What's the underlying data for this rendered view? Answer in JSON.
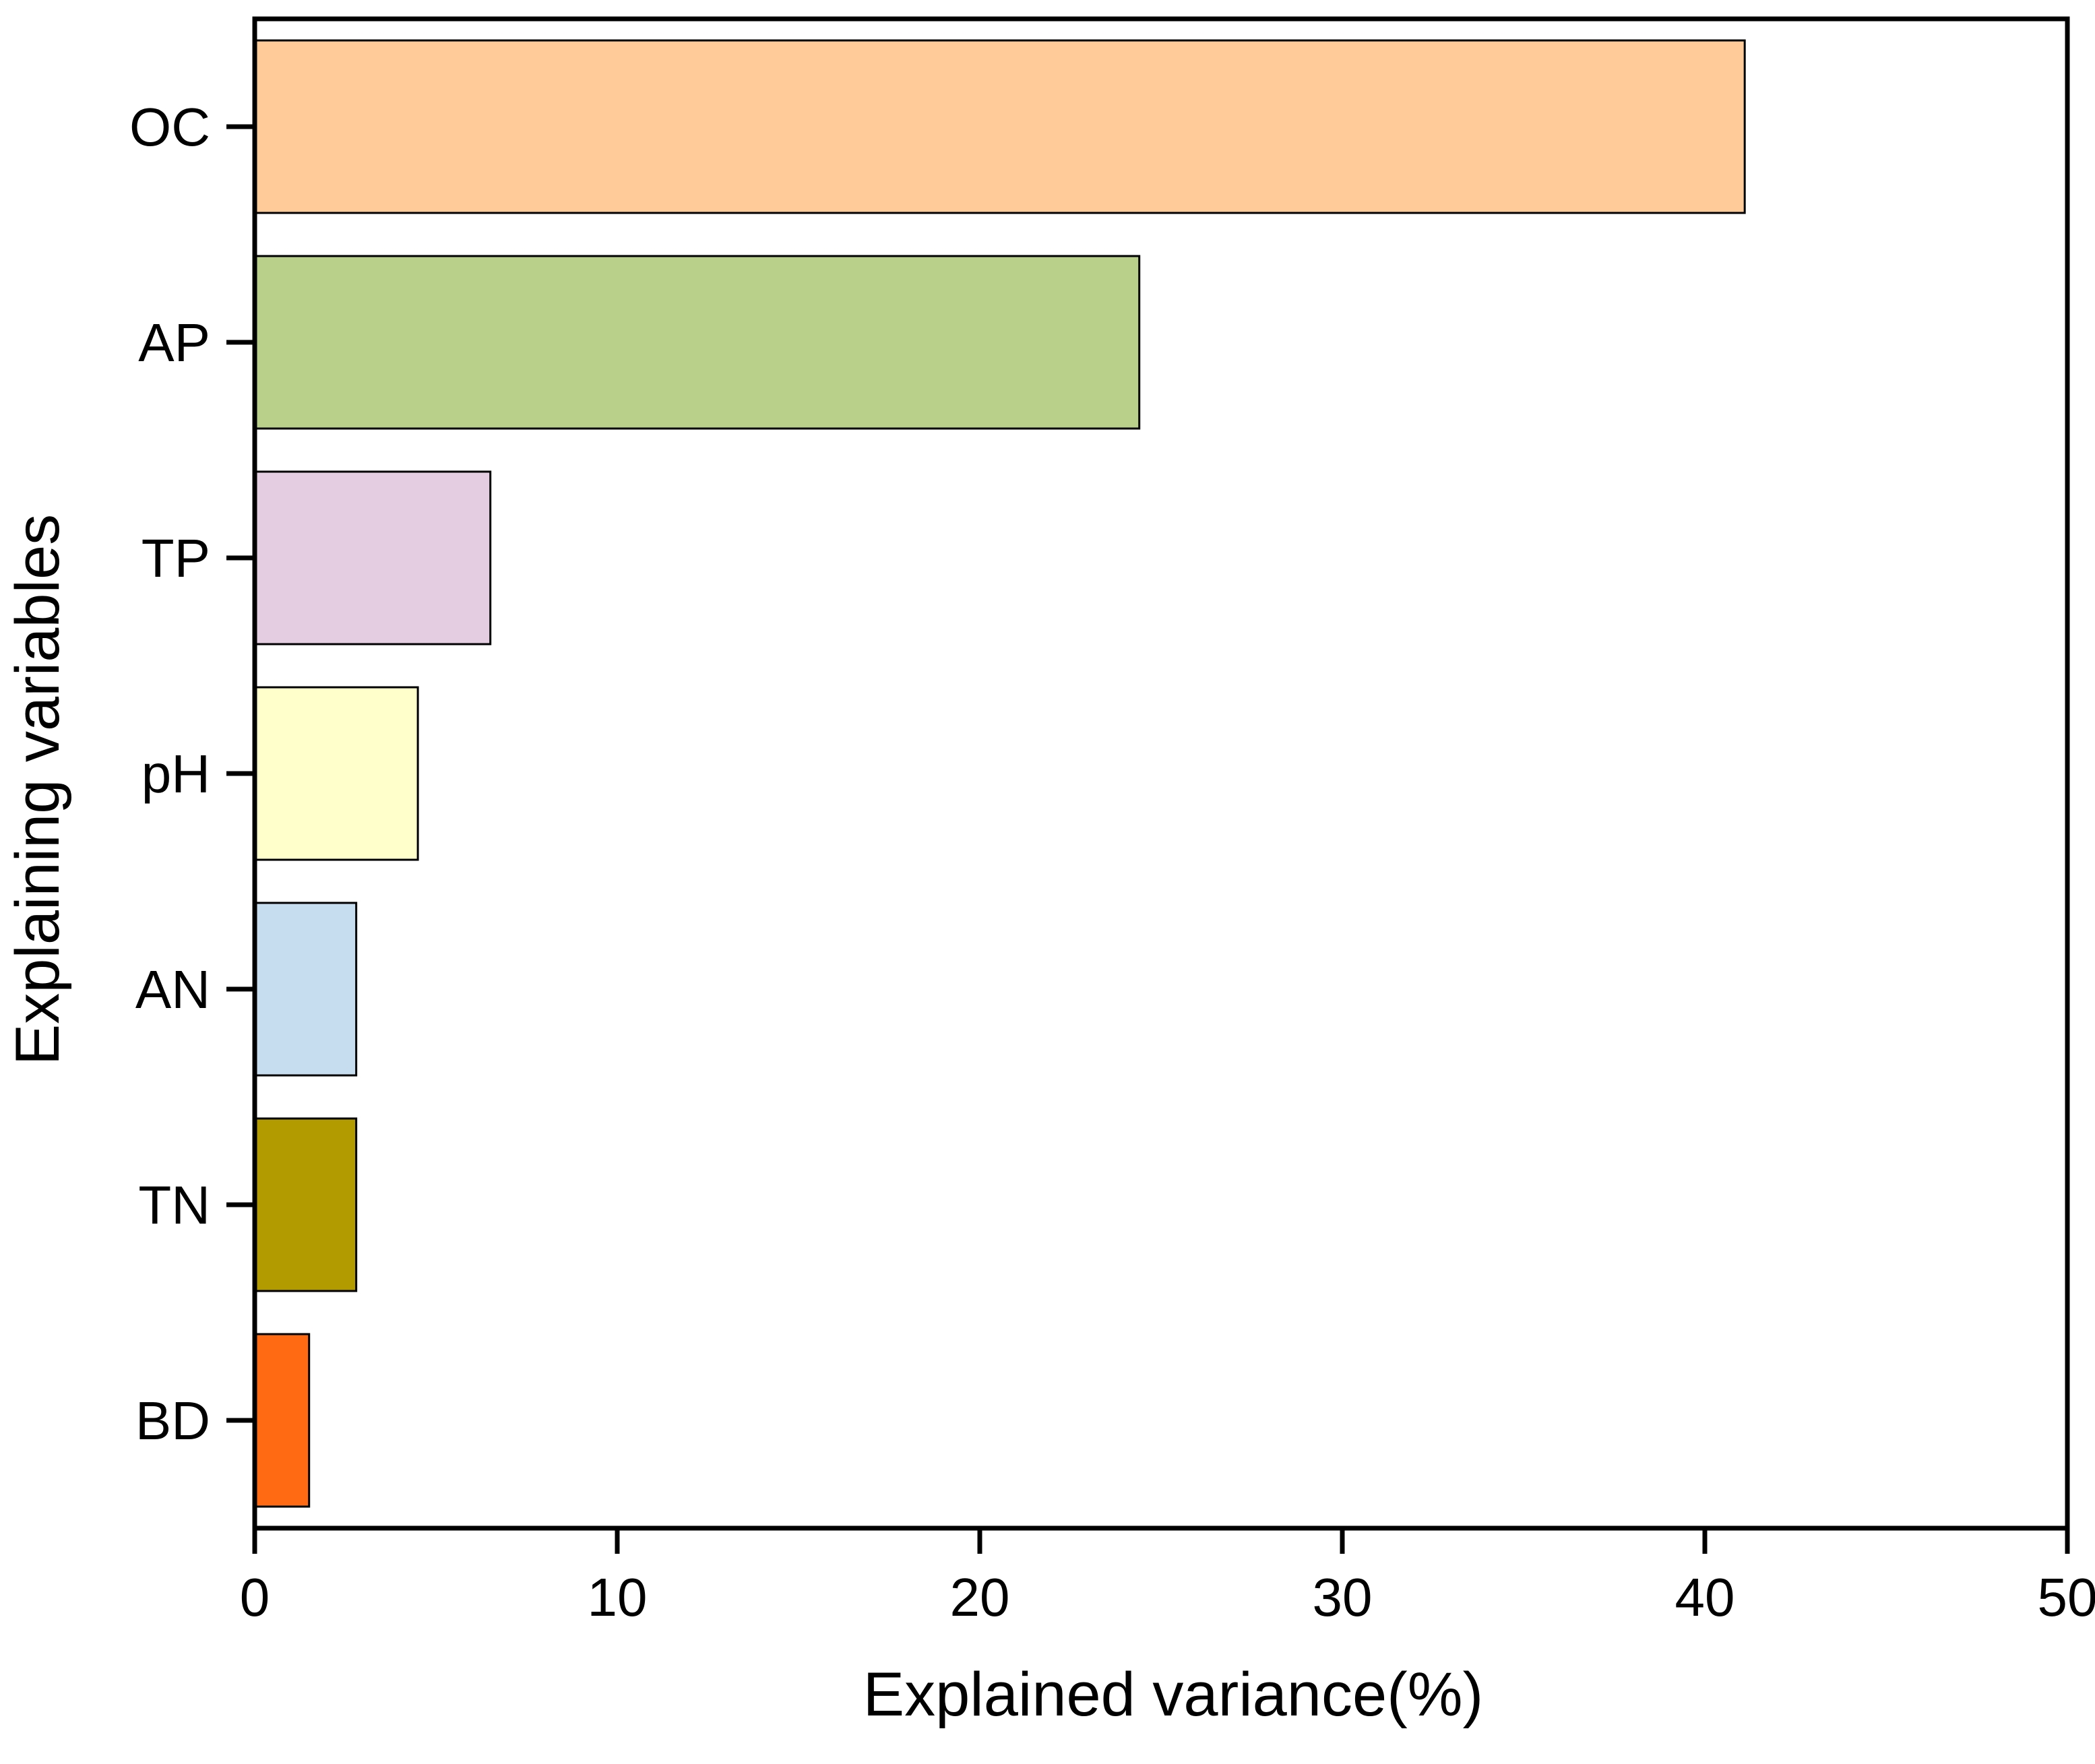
{
  "chart_data": {
    "type": "bar",
    "orientation": "horizontal",
    "title": "",
    "xlabel": "Explained variance(%)",
    "ylabel": "Explaining variables",
    "xlim": [
      0,
      50
    ],
    "xticks": [
      "0",
      "10",
      "20",
      "30",
      "40",
      "50"
    ],
    "categories": [
      "OC",
      "AP",
      "TP",
      "pH",
      "AN",
      "TN",
      "BD"
    ],
    "values": [
      41.1,
      24.4,
      6.5,
      4.5,
      2.8,
      2.8,
      1.5
    ],
    "colors": [
      "#FFCC99",
      "#B8D08A",
      "#E4CDE0",
      "#FFFFCC",
      "#C6DDF0",
      "#B29B00",
      "#FF6A13"
    ],
    "grid": false,
    "legend": "none"
  }
}
